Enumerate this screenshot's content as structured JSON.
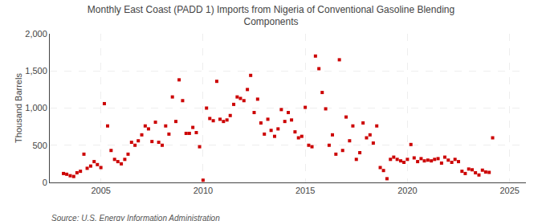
{
  "chart_data": {
    "type": "scatter",
    "title": "Monthly East Coast (PADD 1) Imports from Nigeria of Conventional Gasoline Blending\nComponents",
    "ylabel": "Thousand Barrels",
    "source": "Source: U.S. Energy Information Administration",
    "color": "#cc0000",
    "marker": "square",
    "grid": true,
    "xlim": [
      2002.5,
      2025.8
    ],
    "ylim": [
      0,
      2000
    ],
    "xticks": [
      2005,
      2010,
      2015,
      2020,
      2025
    ],
    "yticks": [
      0,
      500,
      {
        "value": 1000,
        "label": "1,000"
      },
      {
        "value": 1500,
        "label": "1,500"
      },
      {
        "value": 2000,
        "label": "2,000"
      }
    ],
    "x": [
      2003.17,
      2003.33,
      2003.5,
      2003.67,
      2003.83,
      2004.0,
      2004.17,
      2004.33,
      2004.5,
      2004.67,
      2004.83,
      2005.0,
      2005.17,
      2005.33,
      2005.5,
      2005.67,
      2005.83,
      2006.0,
      2006.17,
      2006.33,
      2006.5,
      2006.67,
      2006.83,
      2007.0,
      2007.17,
      2007.33,
      2007.5,
      2007.67,
      2007.83,
      2008.0,
      2008.17,
      2008.33,
      2008.5,
      2008.67,
      2008.83,
      2009.0,
      2009.17,
      2009.33,
      2009.5,
      2009.67,
      2009.83,
      2010.0,
      2010.17,
      2010.33,
      2010.5,
      2010.67,
      2010.83,
      2011.0,
      2011.17,
      2011.33,
      2011.5,
      2011.67,
      2011.83,
      2012.0,
      2012.17,
      2012.33,
      2012.5,
      2012.67,
      2012.83,
      2013.0,
      2013.17,
      2013.33,
      2013.5,
      2013.67,
      2013.83,
      2014.0,
      2014.17,
      2014.33,
      2014.5,
      2014.67,
      2014.83,
      2015.0,
      2015.17,
      2015.33,
      2015.5,
      2015.67,
      2015.83,
      2016.0,
      2016.17,
      2016.33,
      2016.5,
      2016.67,
      2016.83,
      2017.0,
      2017.17,
      2017.33,
      2017.5,
      2017.67,
      2017.83,
      2018.0,
      2018.17,
      2018.33,
      2018.5,
      2018.67,
      2018.83,
      2019.0,
      2019.17,
      2019.33,
      2019.5,
      2019.67,
      2019.83,
      2020.0,
      2020.17,
      2020.33,
      2020.5,
      2020.67,
      2020.83,
      2021.0,
      2021.17,
      2021.33,
      2021.5,
      2021.67,
      2021.83,
      2022.0,
      2022.17,
      2022.33,
      2022.5,
      2022.67,
      2022.83,
      2023.0,
      2023.17,
      2023.33,
      2023.5,
      2023.67,
      2023.83,
      2024.0,
      2024.17
    ],
    "values": [
      120,
      110,
      90,
      80,
      130,
      150,
      380,
      190,
      220,
      280,
      240,
      200,
      1060,
      760,
      430,
      310,
      280,
      250,
      310,
      380,
      540,
      500,
      560,
      640,
      760,
      720,
      550,
      810,
      540,
      500,
      760,
      650,
      1150,
      820,
      1380,
      1100,
      660,
      660,
      740,
      670,
      480,
      30,
      1000,
      860,
      830,
      1360,
      850,
      820,
      840,
      900,
      1050,
      1150,
      1130,
      1100,
      1250,
      1440,
      940,
      1120,
      800,
      650,
      850,
      700,
      620,
      720,
      980,
      820,
      940,
      840,
      680,
      600,
      620,
      1010,
      500,
      480,
      1700,
      1530,
      1210,
      990,
      500,
      640,
      380,
      1650,
      430,
      880,
      560,
      760,
      310,
      400,
      800,
      600,
      640,
      530,
      760,
      200,
      160,
      50,
      310,
      340,
      310,
      290,
      270,
      310,
      510,
      330,
      280,
      320,
      290,
      300,
      290,
      310,
      320,
      260,
      340,
      300,
      270,
      310,
      280,
      150,
      120,
      180,
      170,
      130,
      100,
      165,
      140,
      135,
      600
    ]
  }
}
